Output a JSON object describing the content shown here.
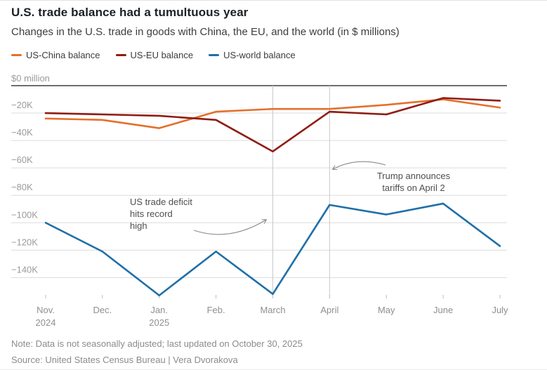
{
  "header": {
    "title": "U.S. trade balance had a tumultuous year",
    "subtitle": "Changes in the U.S. trade in goods with China, the EU, and the world (in $ millions)"
  },
  "chart_data": {
    "type": "line",
    "categories": [
      "Nov. 2024",
      "Dec.",
      "Jan. 2025",
      "Feb.",
      "March",
      "April",
      "May",
      "June",
      "July"
    ],
    "x_tick_labels": [
      [
        "Nov.",
        "2024"
      ],
      [
        "Dec."
      ],
      [
        "Jan.",
        "2025"
      ],
      [
        "Feb."
      ],
      [
        "March"
      ],
      [
        "April"
      ],
      [
        "May"
      ],
      [
        "June"
      ],
      [
        "July"
      ]
    ],
    "series": [
      {
        "name": "US-China balance",
        "color": "#e4702c",
        "values": [
          -24000,
          -25000,
          -31000,
          -19000,
          -17000,
          -17000,
          -14000,
          -10000,
          -16000
        ]
      },
      {
        "name": "US-EU balance",
        "color": "#8f1d14",
        "values": [
          -20000,
          -21000,
          -22000,
          -25000,
          -48000,
          -19000,
          -21000,
          -9000,
          -11000
        ]
      },
      {
        "name": "US-world balance",
        "color": "#1f6fa8",
        "values": [
          -100000,
          -121000,
          -153000,
          -121000,
          -152000,
          -87000,
          -94000,
          -86000,
          -117000
        ]
      }
    ],
    "y_axis": {
      "top_label": "$0 million",
      "ticks": [
        {
          "label": "−20K",
          "value": -20000
        },
        {
          "label": "−40K",
          "value": -40000
        },
        {
          "label": "−60K",
          "value": -60000
        },
        {
          "label": "−80K",
          "value": -80000
        },
        {
          "label": "−100K",
          "value": -100000
        },
        {
          "label": "−120K",
          "value": -120000
        },
        {
          "label": "−140K",
          "value": -140000
        }
      ],
      "ylim": [
        -160000,
        0
      ],
      "grid": true
    },
    "highlighted_x": [
      "March",
      "April"
    ],
    "legend_position": "top",
    "annotations": [
      {
        "text": "US trade deficit\nhits record\nhigh",
        "target": "March"
      },
      {
        "text": "Trump announces\ntariffs on April 2",
        "target": "April"
      }
    ]
  },
  "colors": {
    "zero_axis": "#3f3f3f",
    "gridline": "#dcdcdc",
    "highlight_gridline": "#c9c9c9",
    "tick": "#bbbbbb",
    "axis_label": "#9b9b9b",
    "month_label": "#8f8f8f",
    "arrow": "#8a8a8a"
  },
  "footer": {
    "note": "Note: Data is not seasonally adjusted; last updated on October 30, 2025",
    "source": "Source: United States Census Bureau | Vera Dvorakova"
  }
}
